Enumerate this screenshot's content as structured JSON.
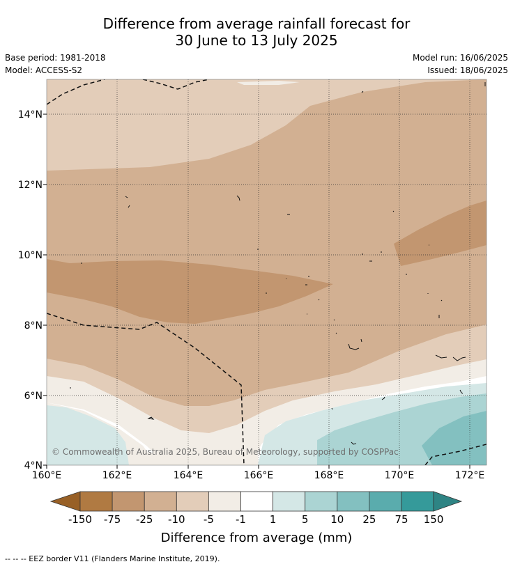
{
  "title": {
    "line1": "Difference from average rainfall forecast for",
    "line2": "30 June to 13 July 2025"
  },
  "meta_left": {
    "base_period": "Base period: 1981-2018",
    "model": "Model: ACCESS-S2"
  },
  "meta_right": {
    "model_run": "Model run: 16/06/2025",
    "issued": "Issued: 18/06/2025"
  },
  "map": {
    "lat_labels": [
      "14°N",
      "12°N",
      "10°N",
      "8°N",
      "6°N",
      "4°N"
    ],
    "lon_labels": [
      "160°E",
      "162°E",
      "164°E",
      "166°E",
      "168°E",
      "170°E",
      "172°E"
    ],
    "copyright": "© Commowealth of Australia 2025, Bureau of Meteorology, supported by COSPPac"
  },
  "legend": {
    "ticks": [
      "-150",
      "-75",
      "-25",
      "-10",
      "-5",
      "-1",
      "1",
      "5",
      "10",
      "25",
      "75",
      "150"
    ],
    "colors": [
      "#986026",
      "#b07a42",
      "#c29670",
      "#d2b092",
      "#e3cdb9",
      "#f2ede6",
      "#ffffff",
      "#d4e7e6",
      "#abd4d3",
      "#83c0c0",
      "#5aacad",
      "#359a9a",
      "#2e8484"
    ],
    "label": "Difference from average (mm)"
  },
  "footnote": "--  --  -- EEZ border V11 (Flanders Marine Institute, 2019)."
}
